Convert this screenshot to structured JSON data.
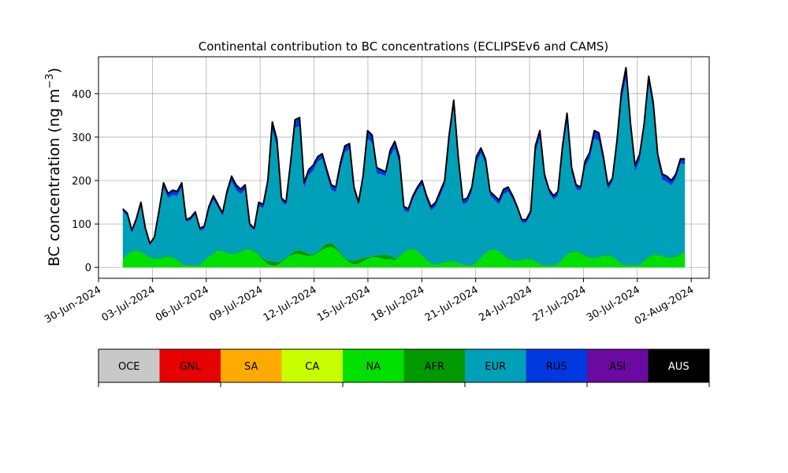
{
  "chart_data": {
    "type": "area",
    "stacked": true,
    "title": "Continental contribution to BC concentrations (ECLIPSEv6 and CAMS)",
    "ylabel": "BC concentration (ng m",
    "ylabel_sup": "−3",
    "xlabel": "",
    "ylim": [
      -25,
      485
    ],
    "xlim": [
      "2024-06-30",
      "2024-08-03"
    ],
    "grid": true,
    "yticks": [
      0,
      100,
      200,
      300,
      400
    ],
    "xticks": [
      "30-Jun-2024",
      "03-Jul-2024",
      "06-Jul-2024",
      "09-Jul-2024",
      "12-Jul-2024",
      "15-Jul-2024",
      "18-Jul-2024",
      "21-Jul-2024",
      "24-Jul-2024",
      "27-Jul-2024",
      "30-Jul-2024",
      "02-Aug-2024"
    ],
    "x_start": "2024-07-01",
    "x_end": "2024-08-01",
    "legend_position": "bottom",
    "legend": [
      {
        "label": "OCE",
        "color": "#c8c8c8"
      },
      {
        "label": "GNL",
        "color": "#e60000"
      },
      {
        "label": "SA",
        "color": "#ffaa00"
      },
      {
        "label": "CA",
        "color": "#c8ff00"
      },
      {
        "label": "NA",
        "color": "#00e000"
      },
      {
        "label": "AFR",
        "color": "#009a00"
      },
      {
        "label": "EUR",
        "color": "#00a0b8"
      },
      {
        "label": "RUS",
        "color": "#0038e0"
      },
      {
        "label": "ASI",
        "color": "#6a0aa0"
      },
      {
        "label": "AUS",
        "color": "#000000"
      }
    ],
    "total_series": [
      [
        "2024-07-01",
        135
      ],
      [
        "2024-07-01",
        125
      ],
      [
        "2024-07-02",
        85
      ],
      [
        "2024-07-02",
        112
      ],
      [
        "2024-07-02",
        150
      ],
      [
        "2024-07-02",
        90
      ],
      [
        "2024-07-03",
        55
      ],
      [
        "2024-07-03",
        70
      ],
      [
        "2024-07-03",
        130
      ],
      [
        "2024-07-03",
        195
      ],
      [
        "2024-07-04",
        170
      ],
      [
        "2024-07-04",
        178
      ],
      [
        "2024-07-04",
        175
      ],
      [
        "2024-07-05",
        195
      ],
      [
        "2024-07-05",
        110
      ],
      [
        "2024-07-05",
        115
      ],
      [
        "2024-07-05",
        128
      ],
      [
        "2024-07-06",
        90
      ],
      [
        "2024-07-06",
        95
      ],
      [
        "2024-07-06",
        140
      ],
      [
        "2024-07-06",
        165
      ],
      [
        "2024-07-07",
        145
      ],
      [
        "2024-07-07",
        125
      ],
      [
        "2024-07-07",
        175
      ],
      [
        "2024-07-07",
        210
      ],
      [
        "2024-07-08",
        190
      ],
      [
        "2024-07-08",
        180
      ],
      [
        "2024-07-08",
        190
      ],
      [
        "2024-07-08",
        100
      ],
      [
        "2024-07-09",
        90
      ],
      [
        "2024-07-09",
        150
      ],
      [
        "2024-07-09",
        145
      ],
      [
        "2024-07-09",
        200
      ],
      [
        "2024-07-10",
        335
      ],
      [
        "2024-07-10",
        295
      ],
      [
        "2024-07-10",
        160
      ],
      [
        "2024-07-10",
        150
      ],
      [
        "2024-07-11",
        240
      ],
      [
        "2024-07-11",
        340
      ],
      [
        "2024-07-11",
        345
      ],
      [
        "2024-07-11",
        195
      ],
      [
        "2024-07-12",
        225
      ],
      [
        "2024-07-12",
        235
      ],
      [
        "2024-07-12",
        255
      ],
      [
        "2024-07-12",
        262
      ],
      [
        "2024-07-13",
        225
      ],
      [
        "2024-07-13",
        190
      ],
      [
        "2024-07-13",
        185
      ],
      [
        "2024-07-13",
        240
      ],
      [
        "2024-07-14",
        280
      ],
      [
        "2024-07-14",
        285
      ],
      [
        "2024-07-14",
        185
      ],
      [
        "2024-07-14",
        150
      ],
      [
        "2024-07-15",
        210
      ],
      [
        "2024-07-15",
        315
      ],
      [
        "2024-07-15",
        305
      ],
      [
        "2024-07-15",
        230
      ],
      [
        "2024-07-16",
        225
      ],
      [
        "2024-07-16",
        220
      ],
      [
        "2024-07-16",
        270
      ],
      [
        "2024-07-16",
        290
      ],
      [
        "2024-07-17",
        255
      ],
      [
        "2024-07-17",
        140
      ],
      [
        "2024-07-17",
        135
      ],
      [
        "2024-07-17",
        165
      ],
      [
        "2024-07-18",
        185
      ],
      [
        "2024-07-18",
        200
      ],
      [
        "2024-07-18",
        165
      ],
      [
        "2024-07-18",
        140
      ],
      [
        "2024-07-19",
        150
      ],
      [
        "2024-07-19",
        175
      ],
      [
        "2024-07-19",
        200
      ],
      [
        "2024-07-19",
        305
      ],
      [
        "2024-07-20",
        385
      ],
      [
        "2024-07-20",
        255
      ],
      [
        "2024-07-20",
        155
      ],
      [
        "2024-07-20",
        160
      ],
      [
        "2024-07-21",
        185
      ],
      [
        "2024-07-21",
        255
      ],
      [
        "2024-07-21",
        275
      ],
      [
        "2024-07-21",
        250
      ],
      [
        "2024-07-22",
        175
      ],
      [
        "2024-07-22",
        165
      ],
      [
        "2024-07-22",
        155
      ],
      [
        "2024-07-22",
        180
      ],
      [
        "2024-07-23",
        185
      ],
      [
        "2024-07-23",
        165
      ],
      [
        "2024-07-23",
        140
      ],
      [
        "2024-07-23",
        110
      ],
      [
        "2024-07-24",
        110
      ],
      [
        "2024-07-24",
        130
      ],
      [
        "2024-07-24",
        280
      ],
      [
        "2024-07-24",
        315
      ],
      [
        "2024-07-25",
        215
      ],
      [
        "2024-07-25",
        180
      ],
      [
        "2024-07-25",
        165
      ],
      [
        "2024-07-25",
        175
      ],
      [
        "2024-07-26",
        280
      ],
      [
        "2024-07-26",
        355
      ],
      [
        "2024-07-26",
        230
      ],
      [
        "2024-07-26",
        190
      ],
      [
        "2024-07-27",
        185
      ],
      [
        "2024-07-27",
        245
      ],
      [
        "2024-07-27",
        265
      ],
      [
        "2024-07-27",
        315
      ],
      [
        "2024-07-28",
        310
      ],
      [
        "2024-07-28",
        255
      ],
      [
        "2024-07-28",
        190
      ],
      [
        "2024-07-28",
        205
      ],
      [
        "2024-07-29",
        290
      ],
      [
        "2024-07-29",
        405
      ],
      [
        "2024-07-29",
        460
      ],
      [
        "2024-07-29",
        330
      ],
      [
        "2024-07-30",
        235
      ],
      [
        "2024-07-30",
        260
      ],
      [
        "2024-07-30",
        330
      ],
      [
        "2024-07-30",
        440
      ],
      [
        "2024-07-31",
        380
      ],
      [
        "2024-07-31",
        260
      ],
      [
        "2024-07-31",
        215
      ],
      [
        "2024-07-31",
        210
      ],
      [
        "2024-08-01",
        200
      ],
      [
        "2024-08-01",
        215
      ],
      [
        "2024-08-01",
        250
      ],
      [
        "2024-08-01",
        250
      ]
    ]
  }
}
